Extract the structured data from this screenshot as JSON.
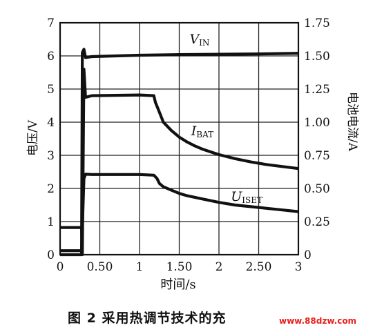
{
  "chart_data": {
    "type": "line",
    "title": "",
    "xlabel": "时间/s",
    "ylabel_left": "电压/V",
    "ylabel_right": "电池电流/A",
    "xlim": [
      0,
      3
    ],
    "ylim_left": [
      0,
      7
    ],
    "ylim_right": [
      0,
      1.75
    ],
    "grid": true,
    "x_ticks": [
      "0",
      "0.50",
      "1",
      "1.50",
      "2",
      "2.50",
      "3"
    ],
    "x_tick_values": [
      0,
      0.5,
      1,
      1.5,
      2,
      2.5,
      3
    ],
    "y_left_ticks": [
      "0",
      "1",
      "2",
      "3",
      "4",
      "5",
      "6",
      "7"
    ],
    "y_left_tick_values": [
      0,
      1,
      2,
      3,
      4,
      5,
      6,
      7
    ],
    "y_right_ticks": [
      "0",
      "0.25",
      "0.50",
      "0.75",
      "1.00",
      "1.25",
      "1.50",
      "1.75"
    ],
    "y_right_tick_values": [
      0,
      0.25,
      0.5,
      0.75,
      1.0,
      1.25,
      1.5,
      1.75
    ],
    "series": [
      {
        "label_main": "V",
        "label_sub": "IN",
        "label_at": [
          1.63,
          6.38
        ],
        "x": [
          0,
          0.27,
          0.28,
          0.3,
          0.32,
          0.4,
          1.0,
          1.5,
          2.0,
          2.5,
          3.0
        ],
        "y": [
          0,
          0,
          6.1,
          6.2,
          5.95,
          5.98,
          6.02,
          6.04,
          6.05,
          6.06,
          6.08
        ]
      },
      {
        "label_main": "I",
        "label_sub": "BAT",
        "label_at": [
          1.65,
          3.6
        ],
        "x": [
          0,
          0.02,
          0.27,
          0.28,
          0.3,
          0.32,
          0.4,
          1.0,
          1.18,
          1.2,
          1.25,
          1.3,
          1.4,
          1.5,
          1.6,
          1.7,
          1.8,
          1.9,
          2.0,
          2.2,
          2.4,
          2.6,
          2.8,
          3.0
        ],
        "y": [
          0.82,
          0.82,
          0.82,
          0,
          5.6,
          4.75,
          4.8,
          4.82,
          4.8,
          4.6,
          4.3,
          4.0,
          3.75,
          3.55,
          3.4,
          3.28,
          3.18,
          3.1,
          3.02,
          2.9,
          2.8,
          2.72,
          2.66,
          2.6
        ]
      },
      {
        "label_main": "U",
        "label_sub": "ISET",
        "label_at": [
          2.15,
          1.62
        ],
        "x": [
          0,
          0.27,
          0.28,
          0.3,
          0.32,
          0.4,
          1.0,
          1.18,
          1.22,
          1.25,
          1.3,
          1.4,
          1.5,
          1.6,
          1.8,
          2.0,
          2.2,
          2.4,
          2.6,
          2.8,
          3.0
        ],
        "y": [
          0.12,
          0.12,
          0.82,
          2.3,
          2.43,
          2.42,
          2.42,
          2.4,
          2.3,
          2.15,
          2.05,
          1.95,
          1.85,
          1.78,
          1.68,
          1.58,
          1.5,
          1.45,
          1.4,
          1.35,
          1.3
        ]
      }
    ]
  },
  "figure": {
    "caption": "图 2  采用热调节技术的充",
    "watermark": "www.88dzw.com"
  }
}
